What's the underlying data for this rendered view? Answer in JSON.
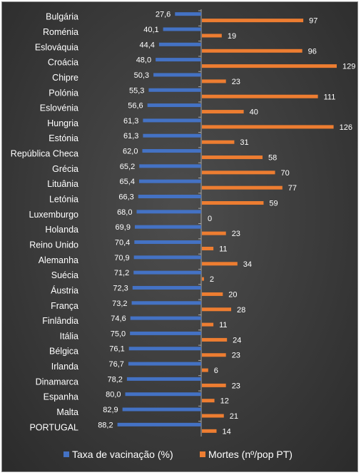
{
  "chart_data": {
    "type": "bar",
    "orientation": "horizontal",
    "categories": [
      "Bulgária",
      "Roménia",
      "Eslováquia",
      "Croácia",
      "Chipre",
      "Polónia",
      "Eslovénia",
      "Hungria",
      "Estónia",
      "República Checa",
      "Grécia",
      "Lituânia",
      "Letónia",
      "Luxemburgo",
      "Holanda",
      "Reino Unido",
      "Alemanha",
      "Suécia",
      "Áustria",
      "França",
      "Finlândia",
      "Itália",
      "Bélgica",
      "Irlanda",
      "Dinamarca",
      "Espanha",
      "Malta",
      "PORTUGAL"
    ],
    "series": [
      {
        "name": "Taxa de vacinação (%)",
        "color": "#4472c4",
        "values": [
          27.6,
          40.1,
          44.4,
          48.0,
          50.3,
          55.3,
          56.6,
          61.3,
          61.3,
          62.0,
          65.2,
          65.4,
          66.3,
          68.0,
          69.9,
          70.4,
          70.9,
          71.2,
          72.3,
          73.2,
          74.6,
          75.0,
          76.1,
          76.7,
          78.2,
          80.0,
          82.9,
          88.2
        ],
        "labels": [
          "27,6",
          "40,1",
          "44,4",
          "48,0",
          "50,3",
          "55,3",
          "56,6",
          "61,3",
          "61,3",
          "62,0",
          "65,2",
          "65,4",
          "66,3",
          "68,0",
          "69,9",
          "70,4",
          "70,9",
          "71,2",
          "72,3",
          "73,2",
          "74,6",
          "75,0",
          "76,1",
          "76,7",
          "78,2",
          "80,0",
          "82,9",
          "88,2"
        ]
      },
      {
        "name": "Mortes (nº/pop PT)",
        "color": "#ed7d31",
        "values": [
          97,
          19,
          96,
          129,
          23,
          111,
          40,
          126,
          31,
          58,
          70,
          77,
          59,
          0,
          23,
          11,
          34,
          2,
          20,
          28,
          11,
          24,
          23,
          6,
          23,
          12,
          21,
          14
        ],
        "labels": [
          "97",
          "19",
          "96",
          "129",
          "23",
          "111",
          "40",
          "126",
          "31",
          "58",
          "70",
          "77",
          "59",
          "0",
          "23",
          "11",
          "34",
          "2",
          "20",
          "28",
          "11",
          "24",
          "23",
          "6",
          "23",
          "12",
          "21",
          "14"
        ]
      }
    ],
    "legend_position": "bottom",
    "grid": false
  }
}
